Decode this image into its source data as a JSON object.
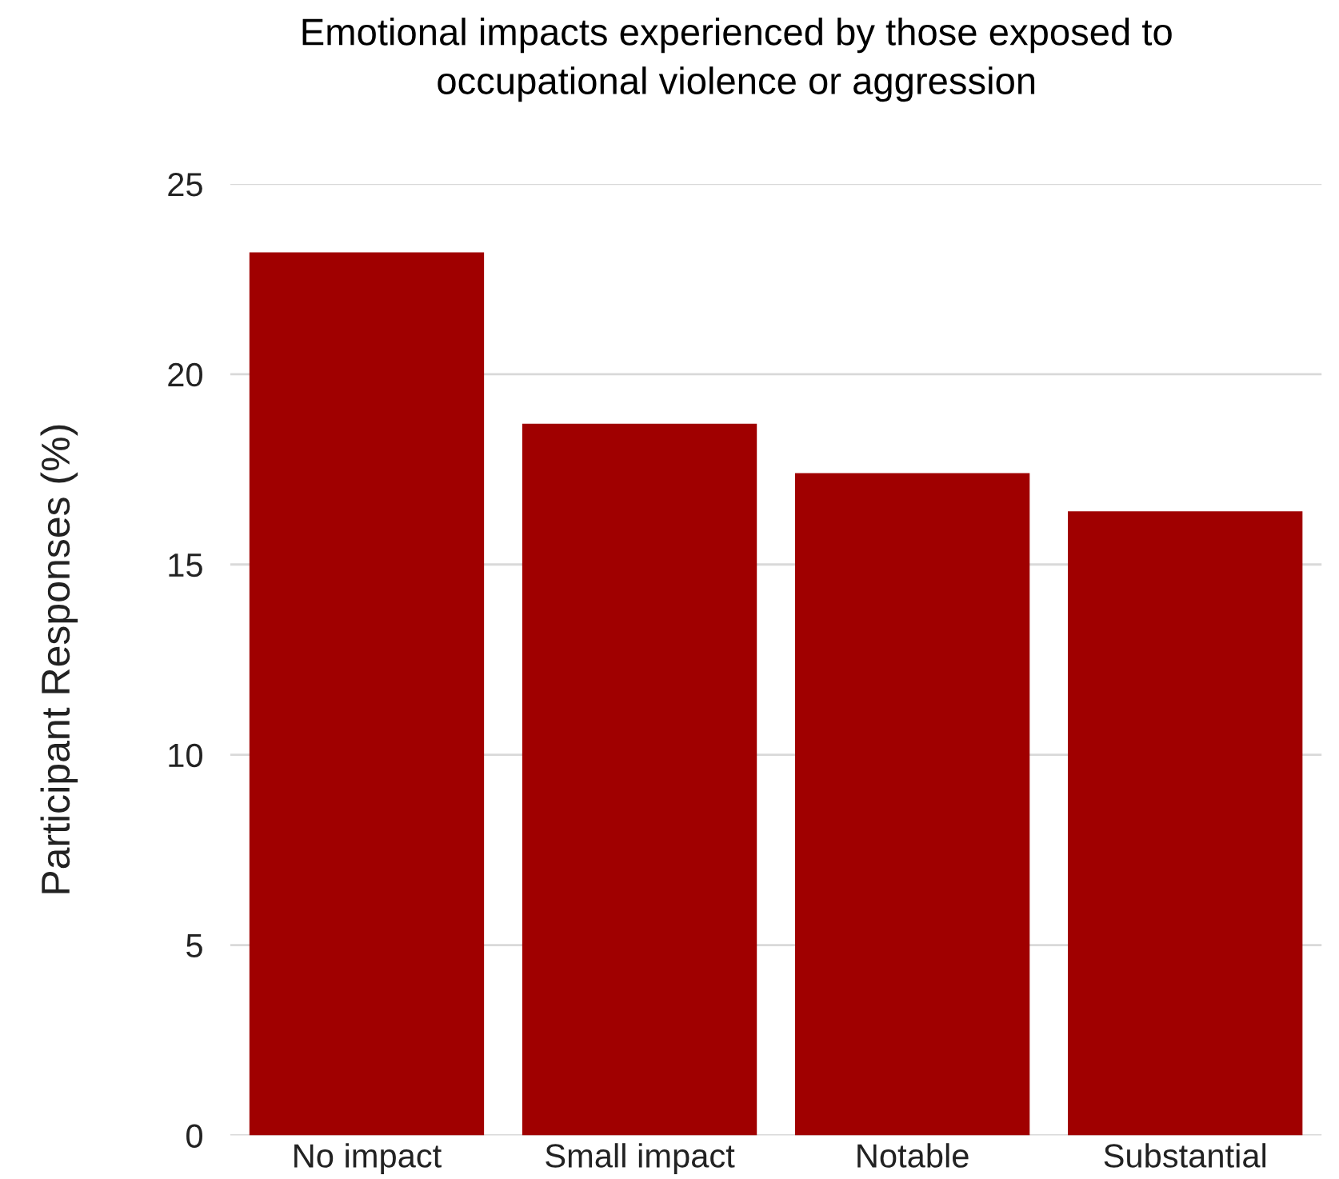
{
  "chart_data": {
    "type": "bar",
    "title": "Emotional impacts experienced by those exposed to\noccupational violence or aggression",
    "ylabel": "Participant Responses (%)",
    "categories": [
      "No impact",
      "Small impact",
      "Notable",
      "Substantial"
    ],
    "values": [
      23.2,
      18.7,
      17.4,
      16.4
    ],
    "color": "#a00000",
    "ylim": [
      0,
      25
    ],
    "yticks": [
      0,
      5,
      10,
      15,
      20,
      25
    ],
    "grid": "y",
    "legend": false
  }
}
